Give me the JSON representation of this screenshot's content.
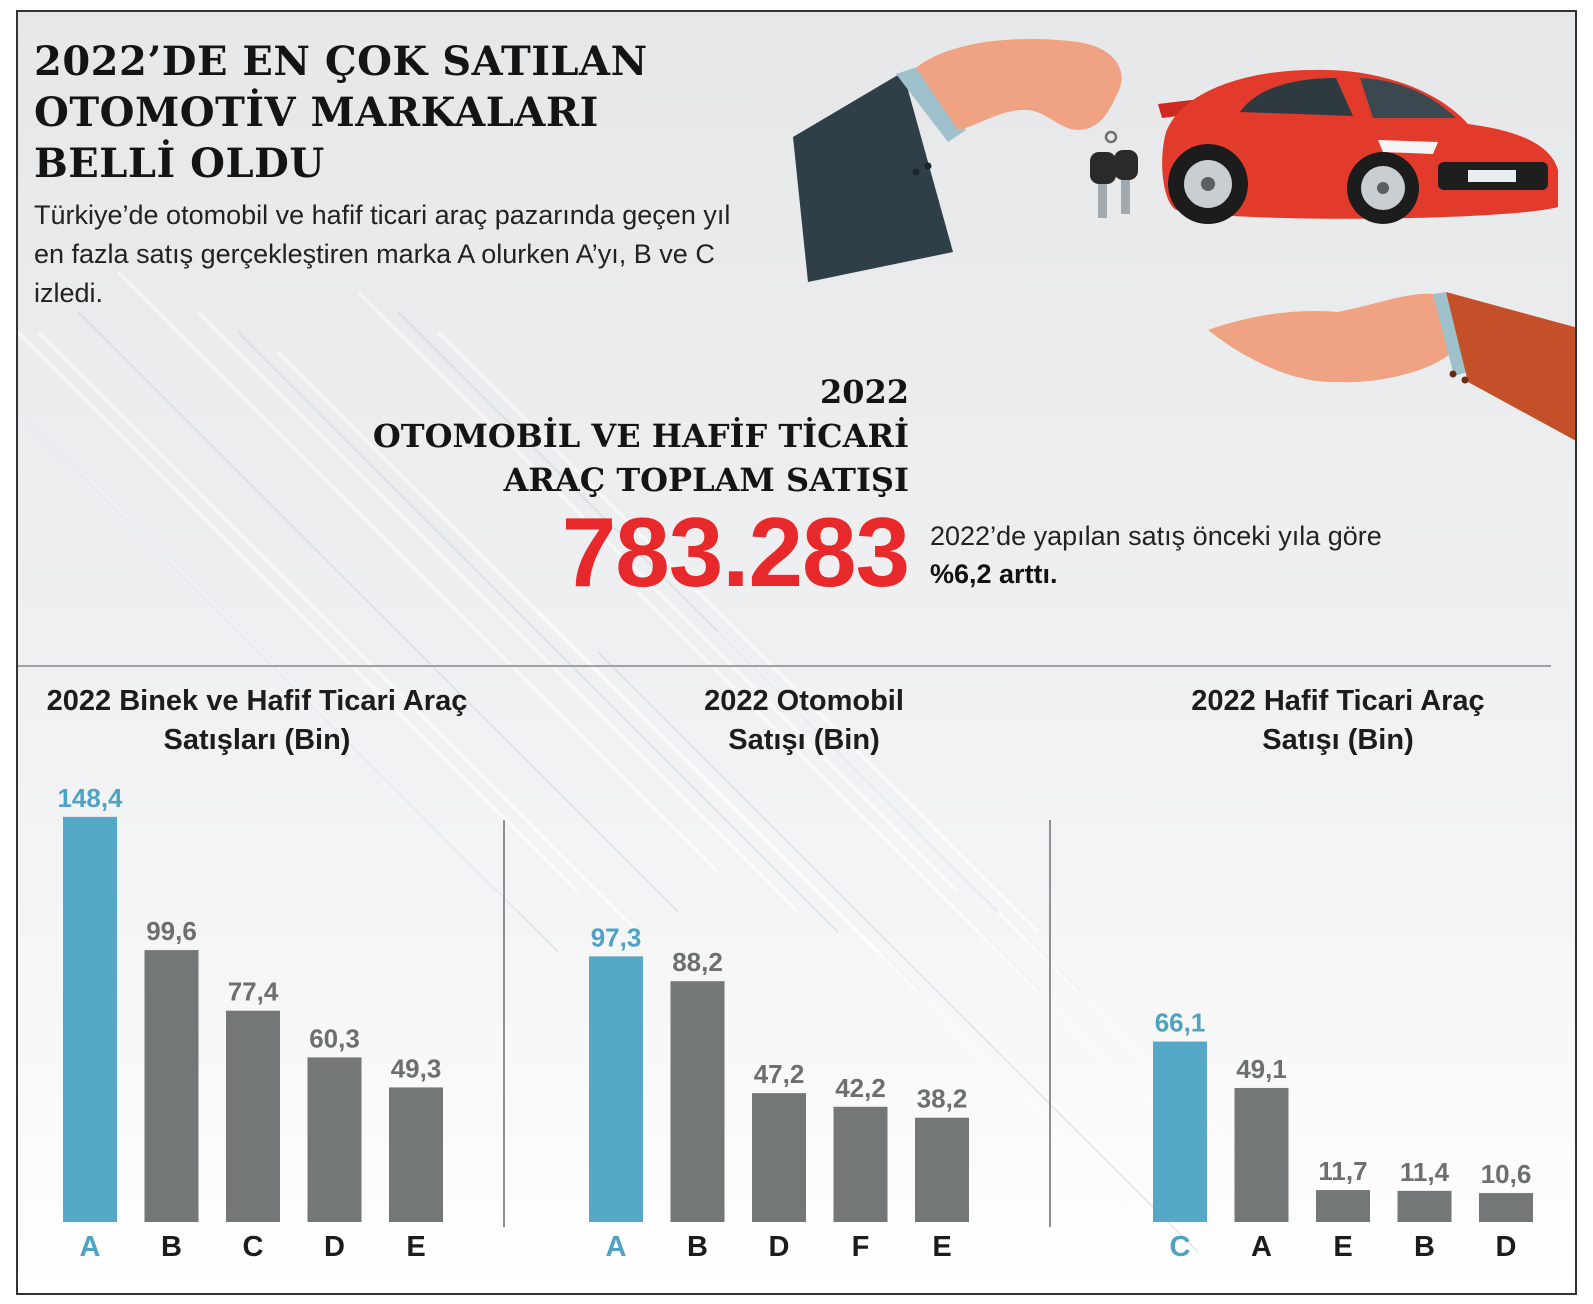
{
  "headline": "2022’DE EN ÇOK SATILAN\nOTOMOTİV MARKALARI\nBELLİ OLDU",
  "subtext": "Türkiye’de otomobil ve hafif ticari araç pazarında geçen yıl en fazla satış gerçekleştiren marka A olurken A’yı, B ve C izledi.",
  "total": {
    "title": "2022\nOTOMOBİL VE HAFİF TİCARİ\nARAÇ TOPLAM SATIŞI",
    "value": "783.283",
    "note_prefix": "2022’de yapılan satış önceki yıla göre ",
    "note_highlight": "%6,2 arttı."
  },
  "illustration": {
    "icons": [
      "hand-with-key-icon",
      "car-key-icon",
      "red-sports-car-icon",
      "open-hand-icon"
    ]
  },
  "colors": {
    "highlight_bar": "#55a9c6",
    "bar": "#747778",
    "total_value": "#e8292b",
    "label_highlight": "#4ea3c2",
    "label": "#6c6f70"
  },
  "chart_data": [
    {
      "type": "bar",
      "title": "2022 Binek ve Hafif Ticari Araç\nSatışları (Bin)",
      "categories": [
        "A",
        "B",
        "C",
        "D",
        "E"
      ],
      "values": [
        148.4,
        99.6,
        77.4,
        60.3,
        49.3
      ],
      "value_labels": [
        "148,4",
        "99,6",
        "77,4",
        "60,3",
        "49,3"
      ],
      "highlight_index": 0,
      "grid": false
    },
    {
      "type": "bar",
      "title": "2022 Otomobil\nSatışı (Bin)",
      "categories": [
        "A",
        "B",
        "D",
        "F",
        "E"
      ],
      "values": [
        97.3,
        88.2,
        47.2,
        42.2,
        38.2
      ],
      "value_labels": [
        "97,3",
        "88,2",
        "47,2",
        "42,2",
        "38,2"
      ],
      "highlight_index": 0,
      "grid": false
    },
    {
      "type": "bar",
      "title": "2022  Hafif Ticari Araç\nSatışı (Bin)",
      "categories": [
        "C",
        "A",
        "E",
        "B",
        "D"
      ],
      "values": [
        66.1,
        49.1,
        11.7,
        11.4,
        10.6
      ],
      "value_labels": [
        "66,1",
        "49,1",
        "11,7",
        "11,4",
        "10,6"
      ],
      "highlight_index": 0,
      "grid": false
    }
  ]
}
